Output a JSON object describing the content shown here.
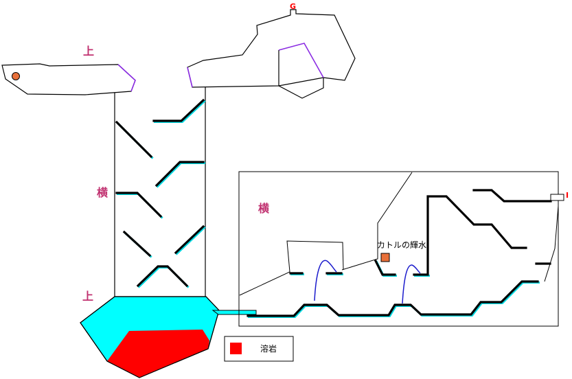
{
  "map": {
    "labels": {
      "up_top": "上",
      "side_left": "横",
      "up_bottom": "上",
      "side_right": "横",
      "goal": "G",
      "item": "I",
      "spring": "カトルの輝水"
    },
    "legend": {
      "text": "溶岩"
    },
    "colors": {
      "outline": "#000000",
      "platform": "#000000",
      "platform_shadow": "#00d8e0",
      "water": "#00ffff",
      "lava": "#ff0000",
      "door": "#8a2be2",
      "arc": "#1a1acc",
      "marker": "#e8703a",
      "label": "#c0306f",
      "goal": "#ff0000"
    }
  }
}
